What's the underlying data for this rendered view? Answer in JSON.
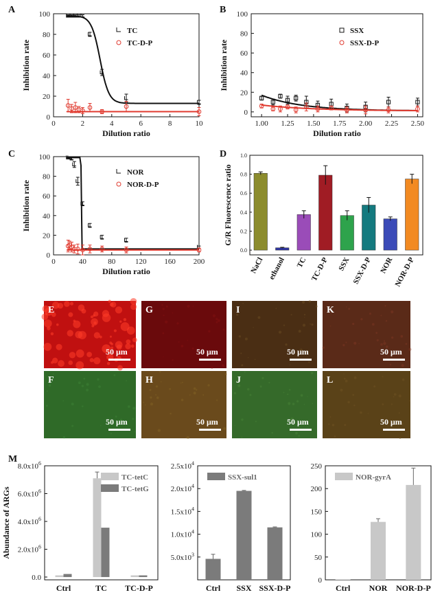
{
  "panel_letters": [
    "A",
    "B",
    "C",
    "D",
    "E",
    "F",
    "G",
    "H",
    "I",
    "J",
    "K",
    "L",
    "M"
  ],
  "colors": {
    "black": "#111111",
    "red": "#e03a2f"
  },
  "chart_data": [
    {
      "id": "A",
      "type": "scatter",
      "xlabel": "Dilution ratio",
      "ylabel": "Inhibition rate",
      "xlim": [
        0,
        10
      ],
      "ylim": [
        0,
        100
      ],
      "xticks": [
        0,
        2,
        4,
        6,
        8,
        10
      ],
      "yticks": [
        0,
        20,
        40,
        60,
        80,
        100
      ],
      "xtick_labels": [
        "0",
        "2",
        "4",
        "6",
        "8",
        "10"
      ],
      "ytick_labels": [
        "0",
        "20",
        "40",
        "60",
        "80",
        "100"
      ],
      "series": [
        {
          "name": "TC",
          "color": "#111111",
          "marker": "bracket",
          "x": [
            1,
            1.25,
            1.5,
            1.75,
            2,
            2.5,
            3.33,
            5,
            10
          ],
          "y": [
            98,
            98,
            98,
            98,
            98,
            80,
            43,
            18,
            14
          ],
          "err": [
            1,
            1,
            1,
            1,
            1,
            2,
            3,
            4,
            2
          ],
          "fit": {
            "kind": "sigmoid",
            "top": 98,
            "bottom": 13,
            "x0": 3.2,
            "k": 0.3
          }
        },
        {
          "name": "TC-D-P",
          "color": "#e03a2f",
          "marker": "circle",
          "x": [
            1,
            1.25,
            1.5,
            1.75,
            2,
            2.5,
            3.33,
            5,
            10
          ],
          "y": [
            11,
            8,
            9,
            7,
            6,
            9,
            5,
            10,
            5
          ],
          "err": [
            6,
            4,
            5,
            3,
            3,
            4,
            2,
            5,
            4
          ],
          "fit": {
            "kind": "flat",
            "value": 5
          }
        }
      ]
    },
    {
      "id": "B",
      "type": "scatter",
      "xlabel": "Dilution ratio",
      "ylabel": "Inhibition rate",
      "xlim": [
        0.9,
        2.55
      ],
      "ylim": [
        -5,
        100
      ],
      "xticks": [
        1,
        1.25,
        1.5,
        1.75,
        2,
        2.25,
        2.5
      ],
      "yticks": [
        0,
        20,
        40,
        60,
        80,
        100
      ],
      "xtick_labels": [
        "1.00",
        "1.25",
        "1.50",
        "1.75",
        "2.00",
        "2.25",
        "2.50"
      ],
      "ytick_labels": [
        "0",
        "20",
        "40",
        "60",
        "80",
        "100"
      ],
      "series": [
        {
          "name": "SSX",
          "color": "#111111",
          "marker": "square",
          "x": [
            1,
            1.11,
            1.18,
            1.25,
            1.33,
            1.43,
            1.54,
            1.67,
            1.82,
            2,
            2.22,
            2.5
          ],
          "y": [
            14,
            10,
            16,
            12,
            14,
            10,
            7,
            8,
            4,
            5,
            10,
            10
          ],
          "err": [
            2,
            3,
            2,
            4,
            3,
            6,
            4,
            5,
            4,
            5,
            5,
            4
          ],
          "fit": {
            "kind": "decay",
            "a": 16,
            "b": 1,
            "k": 2.6,
            "x0": 1.0
          }
        },
        {
          "name": "SSX-D-P",
          "color": "#e03a2f",
          "marker": "circle",
          "x": [
            1,
            1.11,
            1.18,
            1.25,
            1.33,
            1.43,
            1.54,
            1.67,
            1.82,
            2,
            2.22,
            2.5
          ],
          "y": [
            6,
            3,
            3,
            5,
            2,
            5,
            3,
            4,
            2,
            2,
            2,
            3
          ],
          "err": [
            2,
            2,
            3,
            2,
            3,
            4,
            3,
            2,
            3,
            4,
            3,
            3
          ],
          "fit": {
            "kind": "decay",
            "a": 6,
            "b": 1,
            "k": 2.0,
            "x0": 1.0
          }
        }
      ]
    },
    {
      "id": "C",
      "type": "scatter",
      "xlabel": "Dilution ratio",
      "ylabel": "Inhibition rate",
      "xlim": [
        0,
        200
      ],
      "ylim": [
        0,
        100
      ],
      "xticks": [
        0,
        40,
        80,
        120,
        160,
        200
      ],
      "yticks": [
        0,
        20,
        40,
        60,
        80,
        100
      ],
      "xtick_labels": [
        "0",
        "40",
        "80",
        "120",
        "160",
        "200"
      ],
      "ytick_labels": [
        "0",
        "20",
        "40",
        "60",
        "80",
        "100"
      ],
      "series": [
        {
          "name": "NOR",
          "color": "#111111",
          "marker": "bracket",
          "x": [
            20,
            22,
            25,
            28.6,
            33.3,
            40,
            50,
            66.7,
            100,
            200
          ],
          "y": [
            99,
            99,
            98,
            92,
            75,
            52,
            30,
            18,
            15,
            8
          ],
          "err": [
            1,
            1,
            1,
            3,
            4,
            2,
            2,
            2,
            2,
            1
          ],
          "fit": {
            "kind": "sigmoid",
            "top": 99,
            "bottom": 6,
            "x0": 38,
            "k": 0.12
          }
        },
        {
          "name": "NOR-D-P",
          "color": "#e03a2f",
          "marker": "circle",
          "x": [
            20,
            22,
            25,
            28.6,
            33.3,
            40,
            50,
            66.7,
            100,
            200
          ],
          "y": [
            9,
            10,
            8,
            6,
            6,
            5,
            6,
            6,
            5,
            5
          ],
          "err": [
            6,
            4,
            5,
            4,
            5,
            5,
            4,
            3,
            3,
            2
          ],
          "fit": {
            "kind": "flat",
            "value": 5
          }
        }
      ]
    },
    {
      "id": "D",
      "type": "bar",
      "ylabel": "G/R Fluorescence ratio",
      "ylim": [
        -0.05,
        1.0
      ],
      "yticks": [
        0,
        0.2,
        0.4,
        0.6,
        0.8,
        1.0
      ],
      "ytick_labels": [
        "0.0",
        "0.2",
        "0.4",
        "0.6",
        "0.8",
        "1.0"
      ],
      "categories": [
        "NaCl",
        "ethanol",
        "TC",
        "TC-D-P",
        "SSX",
        "SSX-D-P",
        "NOR",
        "NOR-D-P"
      ],
      "values": [
        0.81,
        0.025,
        0.375,
        0.79,
        0.365,
        0.475,
        0.33,
        0.75
      ],
      "errors": [
        0.015,
        0.005,
        0.04,
        0.1,
        0.05,
        0.08,
        0.02,
        0.05
      ],
      "colors": [
        "#8c8c2d",
        "#2f35a0",
        "#9a4cb8",
        "#a01c24",
        "#2ea34c",
        "#147a7f",
        "#3b4bb8",
        "#f28a22"
      ]
    },
    {
      "id": "M1",
      "type": "bar",
      "ylabel": "Abundance of ARGs",
      "ylim": [
        -0.2,
        8
      ],
      "yticks": [
        0,
        2,
        4,
        6,
        8
      ],
      "ytick_labels": [
        "0.0",
        "2.0x10",
        "4.0x10",
        "6.0x10",
        "8.0x10"
      ],
      "ytick_exp": "6",
      "categories": [
        "Ctrl",
        "TC",
        "TC-D-P"
      ],
      "series": [
        {
          "name": "TC-tetC",
          "color": "#c8c8c8",
          "values": [
            0.12,
            7.1,
            0.12
          ],
          "errors": [
            0,
            0.45,
            0
          ]
        },
        {
          "name": "TC-tetG",
          "color": "#7b7b7b",
          "values": [
            0.22,
            3.55,
            0.12
          ],
          "errors": [
            0,
            0,
            0
          ]
        }
      ]
    },
    {
      "id": "M2",
      "type": "bar",
      "ylim": [
        0,
        2.5
      ],
      "yticks": [
        0.5,
        1.0,
        1.5,
        2.0,
        2.5
      ],
      "ytick_labels": [
        "5.0x10",
        "1.0x10",
        "1.5x10",
        "2.0x10",
        "2.5x10"
      ],
      "ytick_exps": [
        "3",
        "4",
        "4",
        "4",
        "4"
      ],
      "categories": [
        "Ctrl",
        "SSX",
        "SSX-D-P"
      ],
      "series": [
        {
          "name": "SSX-sul1",
          "color": "#7b7b7b",
          "values": [
            0.46,
            1.95,
            1.15
          ],
          "errors": [
            0.1,
            0.01,
            0.01
          ]
        }
      ]
    },
    {
      "id": "M3",
      "type": "bar",
      "ylim": [
        0,
        250
      ],
      "yticks": [
        0,
        50,
        100,
        150,
        200,
        250
      ],
      "ytick_labels": [
        "0",
        "50",
        "100",
        "150",
        "200",
        "250"
      ],
      "categories": [
        "Ctrl",
        "NOR",
        "NOR-D-P"
      ],
      "series": [
        {
          "name": "NOR-gyrA",
          "color": "#c8c8c8",
          "values": [
            1,
            127,
            208
          ],
          "errors": [
            0,
            7,
            37
          ]
        }
      ]
    }
  ],
  "micrographs": [
    {
      "label": "E",
      "scale": "50 μm",
      "base": "#c01010",
      "tint": "rgba(255,60,40,0.55)"
    },
    {
      "label": "G",
      "scale": "50 μm",
      "base": "#6a0a0c",
      "tint": "rgba(140,20,20,0.35)"
    },
    {
      "label": "I",
      "scale": "50 μm",
      "base": "#4a2e14",
      "tint": "rgba(120,90,40,0.35)"
    },
    {
      "label": "K",
      "scale": "50 μm",
      "base": "#5a2a18",
      "tint": "rgba(140,60,40,0.35)"
    },
    {
      "label": "F",
      "scale": "50 μm",
      "base": "#2f6a28",
      "tint": "rgba(70,140,60,0.35)"
    },
    {
      "label": "H",
      "scale": "50 μm",
      "base": "#6a4a1c",
      "tint": "rgba(140,110,40,0.35)"
    },
    {
      "label": "J",
      "scale": "50 μm",
      "base": "#356a2a",
      "tint": "rgba(80,140,60,0.35)"
    },
    {
      "label": "L",
      "scale": "50 μm",
      "base": "#5a4218",
      "tint": "rgba(120,90,40,0.35)"
    }
  ]
}
